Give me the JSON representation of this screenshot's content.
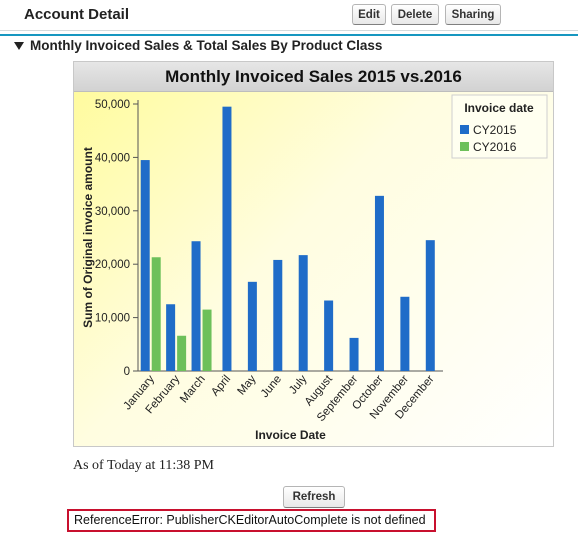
{
  "header": {
    "title": "Account Detail",
    "buttons": {
      "edit": "Edit",
      "delete": "Delete",
      "sharing": "Sharing"
    }
  },
  "section": {
    "title": "Monthly Invoiced Sales & Total Sales By Product Class"
  },
  "chart_data": {
    "type": "bar",
    "title": "Monthly Invoiced Sales 2015 vs.2016",
    "xlabel": "Invoice Date",
    "ylabel": "Sum of Original invoice amount",
    "ylim": [
      0,
      50000
    ],
    "yticks": [
      "0",
      "10,000",
      "20,000",
      "30,000",
      "40,000",
      "50,000"
    ],
    "categories": [
      "January",
      "February",
      "March",
      "April",
      "May",
      "June",
      "July",
      "August",
      "September",
      "October",
      "November",
      "December"
    ],
    "legend_title": "Invoice date",
    "legend_position": "top-right",
    "series": [
      {
        "name": "CY2015",
        "color": "#1f6cc8",
        "values": [
          39500,
          12500,
          24300,
          49500,
          16700,
          20800,
          21700,
          13200,
          6200,
          32800,
          13900,
          24500
        ]
      },
      {
        "name": "CY2016",
        "color": "#6dc05a",
        "values": [
          21300,
          6600,
          11500,
          null,
          null,
          null,
          null,
          null,
          null,
          null,
          null,
          null
        ]
      }
    ]
  },
  "footer": {
    "as_of": "As of Today at 11:38 PM",
    "refresh": "Refresh",
    "error": "ReferenceError: PublisherCKEditorAutoComplete is not defined"
  }
}
